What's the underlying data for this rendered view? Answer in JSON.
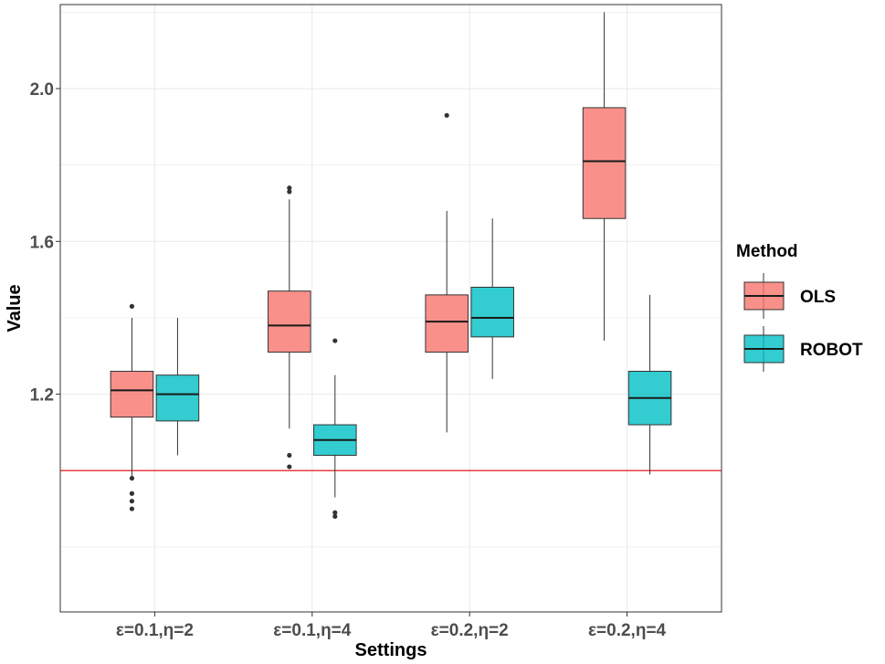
{
  "chart_data": {
    "type": "boxplot",
    "xlabel": "Settings",
    "ylabel": "Value",
    "categories": [
      "ε=0.1,η=2",
      "ε=0.1,η=4",
      "ε=0.2,η=2",
      "ε=0.2,η=4"
    ],
    "yticks": [
      1.2,
      1.6,
      2.0
    ],
    "ytick_labels": [
      "1.2",
      "1.6",
      "2.0"
    ],
    "ylim": [
      0.63,
      2.22
    ],
    "reference_line": {
      "y": 1.0,
      "color": "#e41a1c"
    },
    "legend": {
      "title": "Method",
      "position": "right"
    },
    "series": [
      {
        "name": "OLS",
        "color": "#f8766d",
        "boxes": [
          {
            "whisker_low": 0.98,
            "q1": 1.14,
            "median": 1.21,
            "q3": 1.26,
            "whisker_high": 1.4,
            "outliers": [
              1.43,
              0.98,
              0.94,
              0.92,
              0.9
            ]
          },
          {
            "whisker_low": 1.11,
            "q1": 1.31,
            "median": 1.38,
            "q3": 1.47,
            "whisker_high": 1.71,
            "outliers": [
              1.74,
              1.73,
              1.04,
              1.01
            ]
          },
          {
            "whisker_low": 1.1,
            "q1": 1.31,
            "median": 1.39,
            "q3": 1.46,
            "whisker_high": 1.68,
            "outliers": [
              1.93
            ]
          },
          {
            "whisker_low": 1.34,
            "q1": 1.66,
            "median": 1.81,
            "q3": 1.95,
            "whisker_high": 2.2,
            "outliers": []
          }
        ]
      },
      {
        "name": "ROBOT",
        "color": "#00bfc4",
        "boxes": [
          {
            "whisker_low": 1.04,
            "q1": 1.13,
            "median": 1.2,
            "q3": 1.25,
            "whisker_high": 1.4,
            "outliers": []
          },
          {
            "whisker_low": 0.93,
            "q1": 1.04,
            "median": 1.08,
            "q3": 1.12,
            "whisker_high": 1.25,
            "outliers": [
              1.34,
              0.89,
              0.88
            ]
          },
          {
            "whisker_low": 1.24,
            "q1": 1.35,
            "median": 1.4,
            "q3": 1.48,
            "whisker_high": 1.66,
            "outliers": []
          },
          {
            "whisker_low": 0.99,
            "q1": 1.12,
            "median": 1.19,
            "q3": 1.26,
            "whisker_high": 1.46,
            "outliers": []
          }
        ]
      }
    ]
  }
}
